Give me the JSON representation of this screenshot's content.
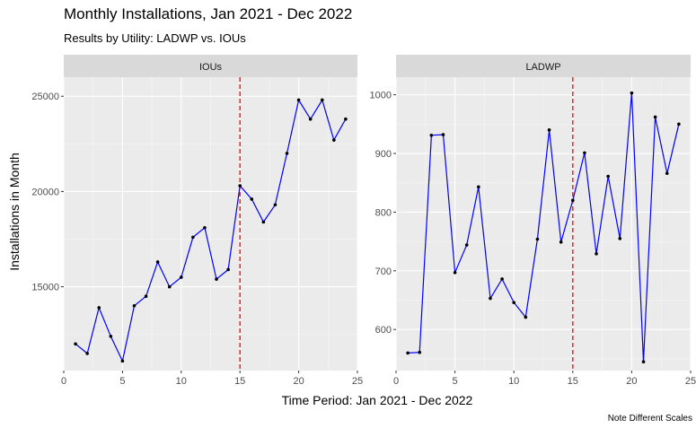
{
  "chart_data": {
    "type": "line",
    "title": "Monthly Installations, Jan 2021 - Dec 2022",
    "subtitle": "Results by Utility: LADWP vs. IOUs",
    "xlabel": "Time Period: Jan 2021 - Dec 2022",
    "ylabel": "Installations in Month",
    "caption": "Note Different Scales",
    "grid": true,
    "line_color": "#0000ff",
    "point_color": "#000000",
    "vline": {
      "x": 15,
      "color": "#ff0000",
      "style": "dashed"
    },
    "panels": [
      {
        "name": "IOUs",
        "x": [
          1,
          2,
          3,
          4,
          5,
          6,
          7,
          8,
          9,
          10,
          11,
          12,
          13,
          14,
          15,
          16,
          17,
          18,
          19,
          20,
          21,
          22,
          23,
          24
        ],
        "values": [
          12000,
          11500,
          13900,
          12400,
          11100,
          14000,
          14500,
          16300,
          15000,
          15500,
          17600,
          18100,
          15400,
          15900,
          20300,
          19600,
          18400,
          19300,
          22000,
          24800,
          23800,
          24800,
          22700,
          23800
        ],
        "xlim": [
          0,
          25
        ],
        "xticks": [
          "0",
          "5",
          "10",
          "15",
          "20",
          "25"
        ],
        "ylim": [
          10600,
          26000
        ],
        "yticks": [
          "15000",
          "20000",
          "25000"
        ]
      },
      {
        "name": "LADWP",
        "x": [
          1,
          2,
          3,
          4,
          5,
          6,
          7,
          8,
          9,
          10,
          11,
          12,
          13,
          14,
          15,
          16,
          17,
          18,
          19,
          20,
          21,
          22,
          23,
          24
        ],
        "values": [
          560,
          561,
          931,
          932,
          697,
          744,
          843,
          653,
          686,
          646,
          621,
          754,
          940,
          749,
          820,
          901,
          729,
          861,
          755,
          1003,
          545,
          962,
          866,
          950
        ],
        "xlim": [
          0,
          25
        ],
        "xticks": [
          "0",
          "5",
          "10",
          "15",
          "20",
          "25"
        ],
        "ylim": [
          530,
          1030
        ],
        "yticks": [
          "600",
          "700",
          "800",
          "900",
          "1000"
        ]
      }
    ]
  }
}
